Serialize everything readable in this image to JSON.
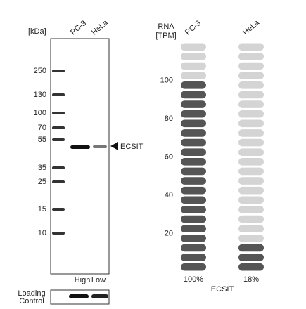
{
  "blot": {
    "unit_label": "[kDa]",
    "lanes": [
      "PC-3",
      "HeLa"
    ],
    "markers": [
      "250",
      "130",
      "100",
      "70",
      "55",
      "35",
      "25",
      "15",
      "10"
    ],
    "target": "ECSIT",
    "lane_levels": [
      "High",
      "Low"
    ],
    "loading_label": [
      "Loading",
      "Control"
    ]
  },
  "rna": {
    "axis_label": [
      "RNA",
      "[TPM]"
    ],
    "lanes": [
      "PC-3",
      "HeLa"
    ],
    "ylim": [
      0,
      120
    ],
    "yticks": [
      100,
      80,
      60,
      40,
      20
    ],
    "values": [
      100,
      18
    ],
    "value_labels": [
      "100%",
      "18%"
    ],
    "gene": "ECSIT"
  }
}
